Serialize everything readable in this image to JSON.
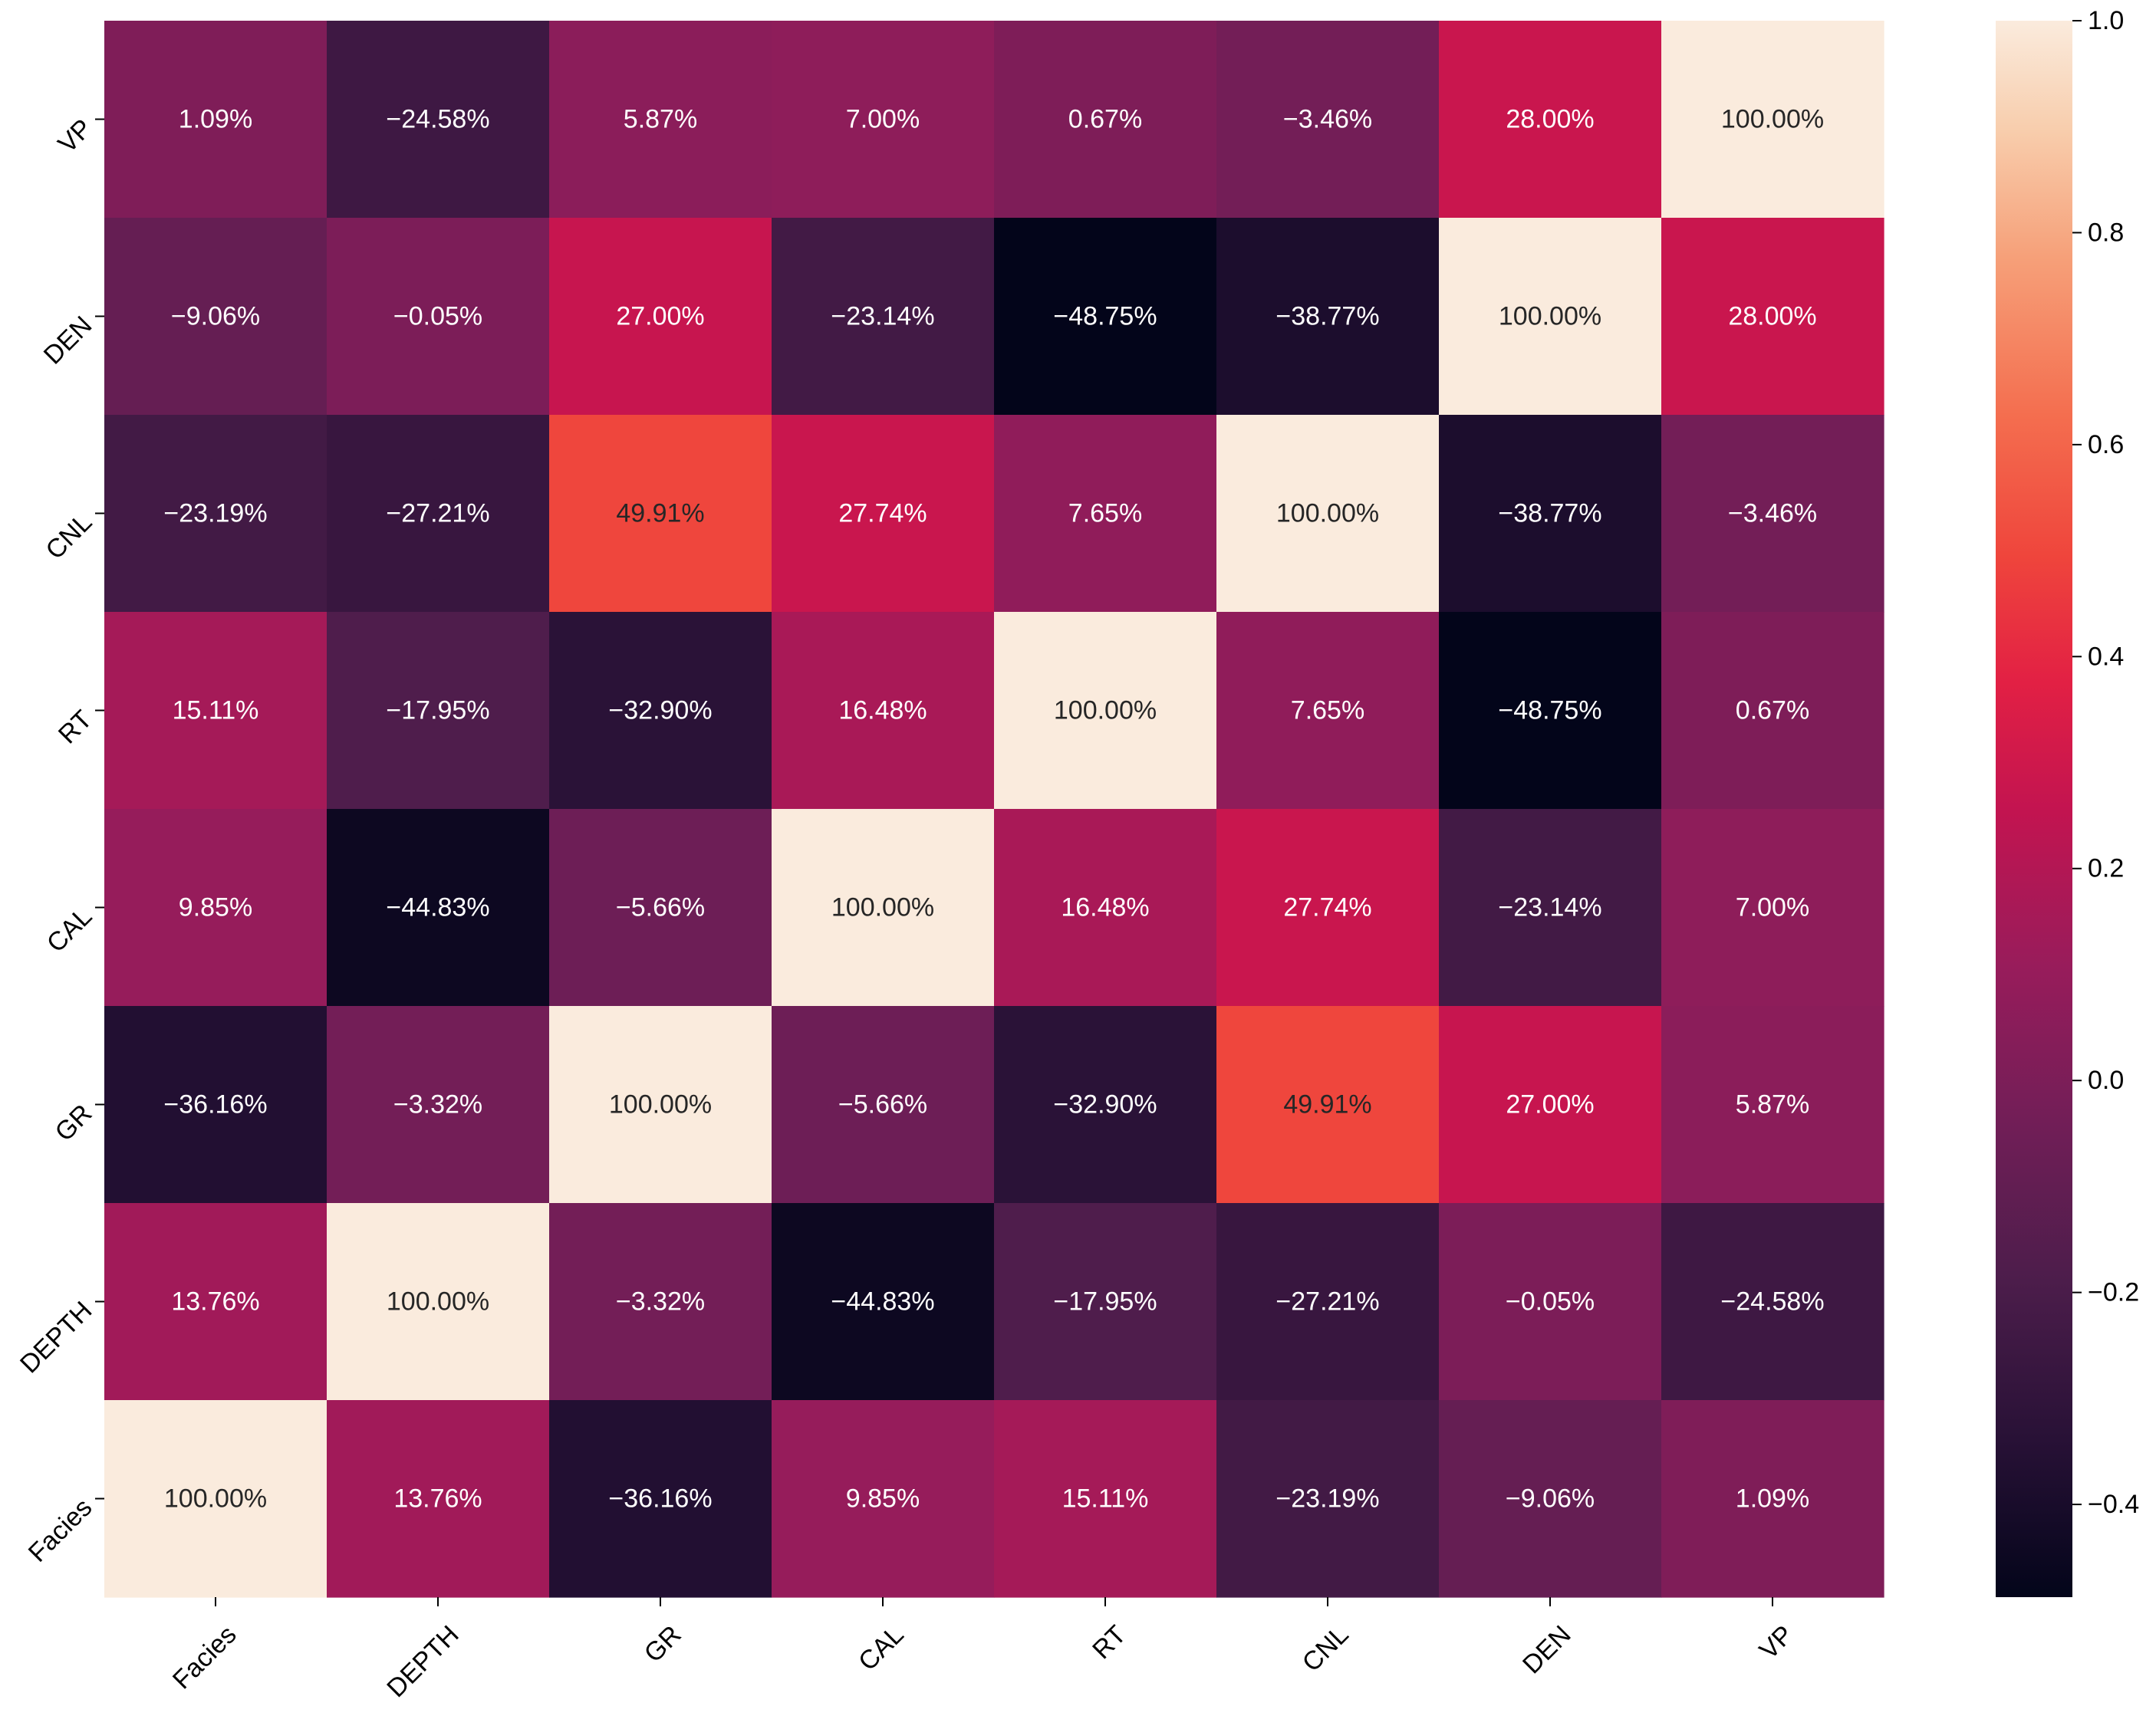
{
  "chart_data": {
    "type": "heatmap",
    "title": "",
    "xlabel": "",
    "ylabel": "",
    "x_categories": [
      "Facies",
      "DEPTH",
      "GR",
      "CAL",
      "RT",
      "CNL",
      "DEN",
      "VP"
    ],
    "y_categories_top_to_bottom": [
      "VP",
      "DEN",
      "CNL",
      "RT",
      "CAL",
      "GR",
      "DEPTH",
      "Facies"
    ],
    "values": [
      [
        1.09,
        -24.58,
        5.87,
        7.0,
        0.67,
        -3.46,
        28.0,
        100.0
      ],
      [
        -9.06,
        -0.05,
        27.0,
        -23.14,
        -48.75,
        -38.77,
        100.0,
        28.0
      ],
      [
        -23.19,
        -27.21,
        49.91,
        27.74,
        7.65,
        100.0,
        -38.77,
        -3.46
      ],
      [
        15.11,
        -17.95,
        -32.9,
        16.48,
        100.0,
        7.65,
        -48.75,
        0.67
      ],
      [
        9.85,
        -44.83,
        -5.66,
        100.0,
        16.48,
        27.74,
        -23.14,
        7.0
      ],
      [
        -36.16,
        -3.32,
        100.0,
        -5.66,
        -32.9,
        49.91,
        27.0,
        5.87
      ],
      [
        13.76,
        100.0,
        -3.32,
        -44.83,
        -17.95,
        -27.21,
        -0.05,
        -24.58
      ],
      [
        100.0,
        13.76,
        -36.16,
        9.85,
        15.11,
        -23.19,
        -9.06,
        1.09
      ]
    ],
    "value_unit": "%",
    "annotation_format": "2-decimal percent",
    "colormap": "rocket",
    "colorbar": {
      "vmin": -0.4875,
      "vmax": 1.0,
      "ticks": [
        1.0,
        0.8,
        0.6,
        0.4,
        0.2,
        0.0,
        -0.2,
        -0.4
      ],
      "tick_labels": [
        "1.0",
        "0.8",
        "0.6",
        "0.4",
        "0.2",
        "0.0",
        "−0.2",
        "−0.4"
      ]
    }
  }
}
